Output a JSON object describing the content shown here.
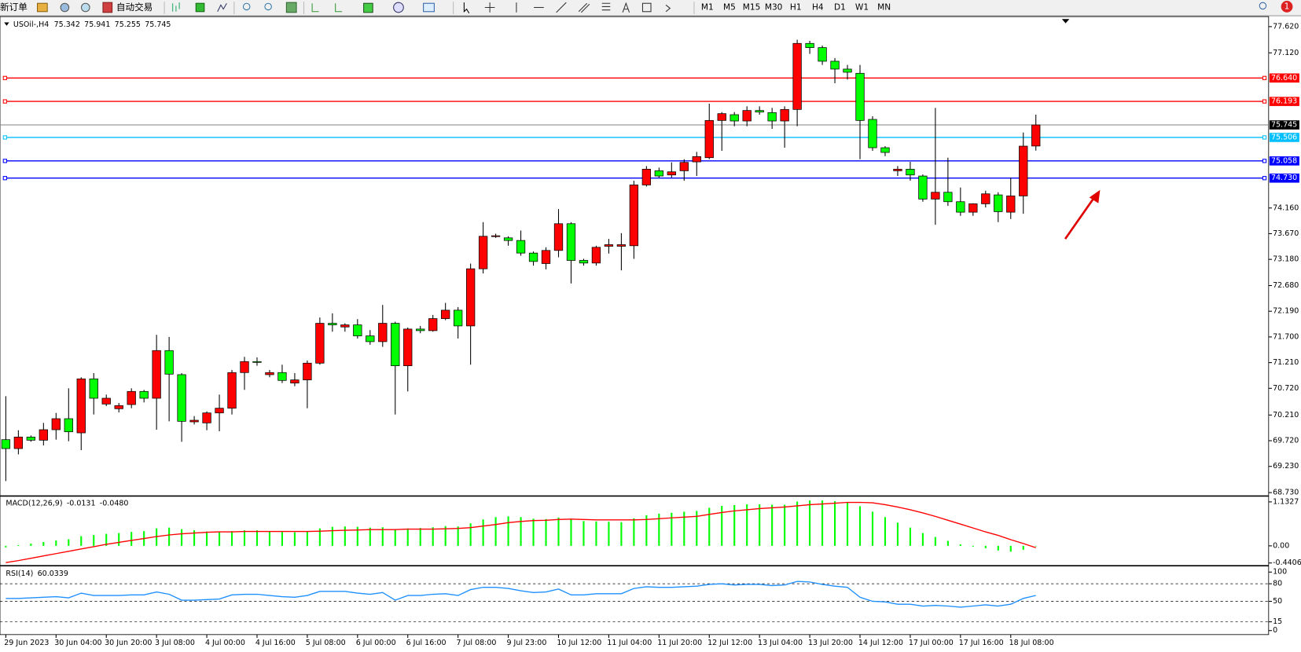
{
  "toolbar": {
    "buttons": [
      "新订单",
      "自动交易"
    ],
    "timeframes": [
      "M1",
      "M5",
      "M15",
      "M30",
      "H1",
      "H4",
      "D1",
      "W1",
      "MN"
    ],
    "badge": 1
  },
  "chart_data": [
    {
      "type": "candlestick",
      "title": "USOil-,H4",
      "up_color": "#ff0000",
      "down_color": "#00ff00",
      "categories": [
        "29 Jun 2023",
        null,
        null,
        null,
        "30 Jun 04:00",
        null,
        null,
        null,
        "30 Jun 20:00",
        null,
        null,
        null,
        "3 Jul 08:00",
        null,
        null,
        null,
        "4 Jul 00:00",
        null,
        null,
        null,
        "4 Jul 16:00",
        null,
        null,
        null,
        "5 Jul 08:00",
        null,
        null,
        null,
        "6 Jul 00:00",
        null,
        null,
        null,
        "6 Jul 16:00",
        null,
        null,
        null,
        "7 Jul 08:00",
        null,
        null,
        null,
        "9 Jul 23:00",
        null,
        null,
        null,
        "10 Jul 12:00",
        null,
        null,
        null,
        "11 Jul 04:00",
        null,
        null,
        null,
        "11 Jul 20:00",
        null,
        null,
        null,
        "12 Jul 12:00",
        null,
        null,
        null,
        "13 Jul 04:00",
        null,
        null,
        null,
        "13 Jul 20:00",
        null,
        null,
        null,
        "14 Jul 12:00",
        null,
        null,
        null,
        "17 Jul 00:00",
        null,
        null,
        null,
        "17 Jul 16:00",
        null,
        null,
        null,
        "18 Jul 08:00",
        null,
        null
      ],
      "open": [
        69.74,
        69.57,
        69.79,
        69.73,
        69.93,
        70.14,
        69.87,
        70.9,
        70.42,
        70.33,
        70.41,
        70.66,
        70.53,
        71.44,
        70.98,
        70.08,
        70.06,
        70.25,
        70.34,
        71.02,
        71.23,
        70.98,
        71.02,
        70.82,
        70.88,
        71.2,
        71.96,
        71.89,
        71.93,
        71.72,
        71.61,
        71.96,
        71.15,
        71.85,
        71.82,
        72.05,
        72.21,
        71.91,
        73.0,
        73.62,
        73.59,
        73.54,
        73.3,
        73.1,
        73.35,
        73.86,
        73.16,
        73.11,
        73.43,
        73.43,
        73.44,
        74.6,
        74.87,
        74.79,
        74.87,
        75.04,
        75.12,
        75.83,
        75.94,
        75.82,
        76.02,
        75.98,
        75.82,
        76.04,
        77.3,
        77.22,
        76.96,
        76.81,
        76.73,
        75.85,
        75.31,
        74.87,
        74.9,
        74.77,
        74.33,
        74.46,
        74.28,
        74.08,
        74.24,
        74.41,
        74.08,
        74.39,
        75.342
      ],
      "high": [
        70.57,
        69.92,
        69.82,
        70.06,
        70.25,
        70.72,
        70.93,
        71.01,
        70.6,
        70.44,
        70.72,
        70.69,
        71.74,
        71.7,
        71.01,
        70.19,
        70.28,
        70.6,
        71.07,
        71.32,
        71.31,
        71.07,
        71.17,
        71.01,
        71.25,
        72.07,
        72.15,
        71.96,
        72.04,
        71.83,
        72.31,
        71.99,
        71.88,
        71.91,
        72.12,
        72.35,
        72.27,
        73.1,
        73.89,
        73.67,
        73.62,
        73.73,
        73.33,
        73.41,
        74.14,
        73.89,
        73.19,
        73.44,
        73.57,
        73.68,
        74.68,
        74.96,
        74.93,
        75.03,
        75.09,
        75.23,
        76.15,
        75.99,
        75.99,
        76.1,
        76.1,
        76.07,
        76.1,
        77.37,
        77.35,
        77.26,
        77.02,
        76.89,
        76.89,
        75.91,
        75.34,
        74.96,
        75.04,
        74.8,
        76.07,
        75.12,
        74.55,
        74.25,
        74.49,
        74.46,
        74.74,
        75.6,
        75.941
      ],
      "low": [
        68.95,
        69.46,
        69.7,
        69.63,
        69.74,
        69.71,
        69.54,
        70.22,
        70.38,
        70.26,
        70.34,
        70.45,
        69.93,
        70.09,
        69.7,
        70.03,
        69.92,
        69.9,
        70.22,
        70.69,
        71.15,
        70.93,
        70.82,
        70.76,
        70.34,
        71.17,
        71.8,
        71.8,
        71.67,
        71.55,
        71.51,
        70.22,
        70.66,
        71.77,
        71.8,
        72.02,
        71.67,
        71.17,
        72.91,
        73.59,
        73.44,
        73.25,
        73.06,
        72.99,
        73.22,
        72.72,
        73.06,
        73.06,
        73.29,
        72.97,
        73.19,
        74.57,
        74.73,
        74.74,
        74.68,
        74.77,
        75.09,
        75.25,
        75.72,
        75.72,
        75.94,
        75.67,
        75.31,
        75.72,
        77.1,
        76.89,
        76.54,
        76.61,
        75.09,
        75.25,
        75.15,
        74.77,
        74.68,
        74.28,
        73.84,
        74.2,
        74.01,
        74.01,
        74.17,
        73.89,
        73.95,
        74.05,
        75.255
      ],
      "close": [
        69.57,
        69.79,
        69.73,
        69.93,
        70.14,
        69.89,
        70.9,
        70.53,
        70.53,
        70.39,
        70.66,
        70.53,
        71.44,
        70.99,
        70.09,
        70.11,
        70.25,
        70.34,
        71.02,
        71.23,
        71.22,
        71.02,
        70.87,
        70.88,
        71.2,
        71.96,
        71.93,
        71.93,
        71.72,
        71.61,
        71.96,
        71.15,
        71.85,
        71.82,
        72.05,
        72.21,
        71.91,
        73.0,
        73.62,
        73.63,
        73.54,
        73.3,
        73.14,
        73.35,
        73.86,
        73.16,
        73.11,
        73.41,
        73.46,
        73.46,
        74.6,
        74.9,
        74.77,
        74.85,
        75.03,
        75.14,
        75.83,
        75.96,
        75.82,
        76.02,
        75.99,
        75.82,
        76.04,
        77.3,
        77.22,
        76.96,
        76.81,
        76.75,
        75.83,
        75.31,
        75.22,
        74.9,
        74.79,
        74.33,
        74.46,
        74.28,
        74.08,
        74.24,
        74.43,
        74.09,
        74.39,
        75.34,
        75.745
      ],
      "ylim": [
        68.68,
        77.78
      ],
      "yticks": [
        {
          "value": 77.62,
          "label": "77.620"
        },
        {
          "value": 77.12,
          "label": "77.120"
        },
        {
          "value": 74.16,
          "label": "74.160"
        },
        {
          "value": 73.67,
          "label": "73.670"
        },
        {
          "value": 73.18,
          "label": "73.180"
        },
        {
          "value": 72.68,
          "label": "72.680"
        },
        {
          "value": 72.19,
          "label": "72.190"
        },
        {
          "value": 71.7,
          "label": "71.700"
        },
        {
          "value": 71.21,
          "label": "71.210"
        },
        {
          "value": 70.72,
          "label": "70.720"
        },
        {
          "value": 70.21,
          "label": "70.210"
        },
        {
          "value": 69.72,
          "label": "69.720"
        },
        {
          "value": 69.23,
          "label": "69.230"
        },
        {
          "value": 68.73,
          "label": "68.730"
        }
      ],
      "bid_color": "#808080",
      "levels": [
        {
          "value": 76.64,
          "label": "76.640",
          "color": "#ff0000"
        },
        {
          "value": 76.193,
          "label": "76.193",
          "color": "#ff0000"
        },
        {
          "value": 75.506,
          "label": "75.506",
          "color": "#00bfff"
        },
        {
          "value": 75.058,
          "label": "75.058",
          "color": "#0000ff"
        },
        {
          "value": 74.73,
          "label": "74.730",
          "color": "#0000ff"
        }
      ]
    },
    {
      "type": "macd",
      "title": "MACD(12,26,9)",
      "readout": [
        -0.0131,
        {
          "value": -0.048,
          "label": "-0.0480"
        }
      ],
      "histogram": {
        "color": "#00ff00",
        "values": [
          -0.04,
          0.02,
          0.06,
          0.1,
          0.14,
          0.17,
          0.25,
          0.28,
          0.31,
          0.33,
          0.36,
          0.38,
          0.45,
          0.47,
          0.43,
          0.4,
          0.37,
          0.35,
          0.38,
          0.4,
          0.4,
          0.38,
          0.36,
          0.35,
          0.37,
          0.45,
          0.49,
          0.5,
          0.49,
          0.47,
          0.48,
          0.43,
          0.45,
          0.46,
          0.48,
          0.51,
          0.5,
          0.58,
          0.68,
          0.74,
          0.76,
          0.74,
          0.7,
          0.69,
          0.73,
          0.68,
          0.64,
          0.63,
          0.62,
          0.61,
          0.71,
          0.79,
          0.83,
          0.85,
          0.88,
          0.9,
          0.98,
          1.03,
          1.05,
          1.07,
          1.07,
          1.06,
          1.06,
          1.14,
          1.17,
          1.17,
          1.15,
          1.12,
          1.02,
          0.88,
          0.74,
          0.6,
          0.47,
          0.33,
          0.23,
          0.13,
          0.04,
          -0.02,
          -0.06,
          -0.12,
          -0.15,
          -0.1,
          -0.0131
        ]
      },
      "signal": {
        "color": "#ff0000",
        "values": [
          -0.43,
          -0.38,
          -0.32,
          -0.26,
          -0.2,
          -0.14,
          -0.08,
          -0.02,
          0.04,
          0.09,
          0.14,
          0.19,
          0.24,
          0.28,
          0.31,
          0.33,
          0.35,
          0.36,
          0.36,
          0.37,
          0.37,
          0.37,
          0.37,
          0.37,
          0.37,
          0.38,
          0.39,
          0.4,
          0.41,
          0.42,
          0.42,
          0.42,
          0.43,
          0.43,
          0.43,
          0.44,
          0.45,
          0.47,
          0.51,
          0.55,
          0.6,
          0.63,
          0.65,
          0.66,
          0.68,
          0.69,
          0.68,
          0.67,
          0.67,
          0.67,
          0.67,
          0.68,
          0.7,
          0.72,
          0.74,
          0.76,
          0.81,
          0.86,
          0.9,
          0.93,
          0.96,
          0.98,
          1.0,
          1.03,
          1.06,
          1.08,
          1.1,
          1.12,
          1.12,
          1.11,
          1.06,
          1.0,
          0.93,
          0.85,
          0.76,
          0.66,
          0.56,
          0.46,
          0.36,
          0.27,
          0.16,
          0.06,
          -0.048
        ]
      },
      "ylim": [
        -0.49,
        1.24
      ],
      "yticks": [
        1.1327,
        {
          "value": 0,
          "label": "0.00"
        },
        -0.4406
      ]
    },
    {
      "type": "line",
      "title": "RSI(14)",
      "readout": [
        60.0339
      ],
      "color": "#1e90ff",
      "values": [
        55,
        55,
        56,
        57,
        58,
        56,
        64,
        60,
        60,
        60,
        61,
        61,
        66,
        62,
        52,
        52,
        53,
        54,
        61,
        62,
        62,
        60,
        58,
        57,
        60,
        67,
        67,
        67,
        64,
        62,
        65,
        52,
        60,
        60,
        62,
        63,
        60,
        70,
        74,
        74,
        72,
        68,
        65,
        66,
        71,
        61,
        61,
        63,
        63,
        63,
        72,
        75,
        74,
        74,
        75,
        76,
        79,
        80,
        78,
        79,
        79,
        77,
        78,
        84,
        83,
        79,
        76,
        74,
        57,
        50,
        49,
        45,
        45,
        42,
        43,
        42,
        40,
        42,
        44,
        42,
        45,
        55,
        60.0339
      ],
      "ylim": [
        -4,
        108
      ],
      "yticks": [
        100,
        80,
        50,
        15,
        0
      ],
      "levels": [
        80,
        50,
        15
      ]
    }
  ]
}
